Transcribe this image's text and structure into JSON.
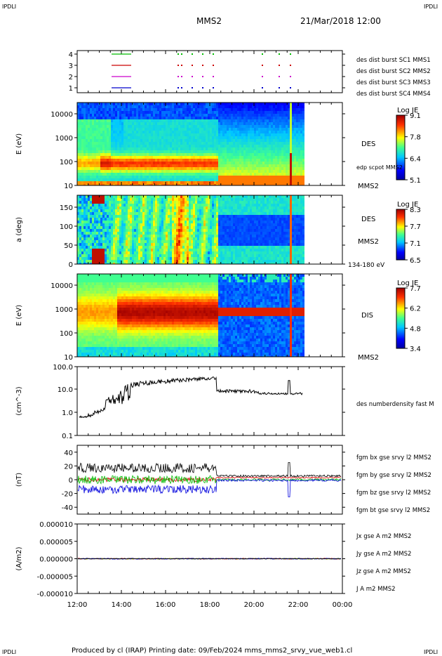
{
  "header": {
    "corner_top_left": "IPDLI",
    "corner_top_right": "IPDLI",
    "corner_bottom_left": "IPDLI",
    "corner_bottom_right": "IPDLI",
    "spacecraft": "MMS2",
    "datetime": "21/Mar/2018 12:00"
  },
  "footer": {
    "text": "Produced by cl (IRAP)   Printing date: 09/Feb/2024   mms_mms2_srvy_vue_web1.cl"
  },
  "chart_data": [
    {
      "id": "burst",
      "type": "scatter",
      "y_ticks": [
        "4",
        "3",
        "2",
        "1"
      ],
      "legend": [
        {
          "label": "des dist burst SC1 MMS1",
          "color": "#0000cc"
        },
        {
          "label": "des dist burst SC2 MMS2",
          "color": "#cc00cc"
        },
        {
          "label": "des dist burst SC3 MMS3",
          "color": "#cc0000"
        },
        {
          "label": "des dist burst SC4 MMS4",
          "color": "#00bb00"
        }
      ]
    },
    {
      "id": "des_energy",
      "type": "heatmap",
      "ylabel": "E (eV)",
      "y_ticks": [
        "10000",
        "1000",
        "100",
        "10"
      ],
      "right_labels": [
        "DES",
        "edp scpot MMS2",
        "MMS2"
      ],
      "colorbar": {
        "title": "Log JE",
        "ticks": [
          "9.1",
          "7.8",
          "6.4",
          "5.1"
        ]
      }
    },
    {
      "id": "des_pitch",
      "type": "heatmap",
      "ylabel": "a (deg)",
      "y_ticks": [
        "150",
        "100",
        "50",
        "0"
      ],
      "right_labels": [
        "DES",
        "MMS2",
        "134-180 eV"
      ],
      "colorbar": {
        "title": "Log JE",
        "ticks": [
          "8.3",
          "7.7",
          "7.1",
          "6.5"
        ]
      }
    },
    {
      "id": "dis_energy",
      "type": "heatmap",
      "ylabel": "E (eV)",
      "y_ticks": [
        "10000",
        "1000",
        "100",
        "10"
      ],
      "right_labels": [
        "DIS",
        "MMS2"
      ],
      "colorbar": {
        "title": "Log JE",
        "ticks": [
          "7.7",
          "6.2",
          "4.8",
          "3.4"
        ]
      }
    },
    {
      "id": "density",
      "type": "line",
      "ylabel": "(cm^-3)",
      "y_ticks": [
        "100.0",
        "10.0",
        "1.0",
        "0.1"
      ],
      "ylim": [
        0.1,
        100
      ],
      "scale": "log",
      "series": [
        {
          "name": "des numberdensity fast M",
          "color": "#000000"
        }
      ]
    },
    {
      "id": "bfield",
      "type": "line",
      "ylabel": "(nT)",
      "y_ticks": [
        "40",
        "20",
        "0",
        "-20",
        "-40"
      ],
      "ylim": [
        -50,
        50
      ],
      "series": [
        {
          "name": "fgm bx gse srvy l2 MMS2",
          "color": "#dd0000"
        },
        {
          "name": "fgm by gse srvy l2 MMS2",
          "color": "#00bb00"
        },
        {
          "name": "fgm bz gse srvy l2 MMS2",
          "color": "#0000dd"
        },
        {
          "name": "fgm bt gse srvy l2 MMS2",
          "color": "#000000"
        }
      ]
    },
    {
      "id": "current",
      "type": "line",
      "ylabel": "(A/m2)",
      "y_ticks": [
        "0.000010",
        "0.000005",
        "0.000000",
        "-0.000005",
        "-0.000010"
      ],
      "ylim": [
        -1e-05,
        1e-05
      ],
      "series": [
        {
          "name": "Jx gse A m2 MMS2",
          "color": "#dd0000"
        },
        {
          "name": "Jy gse A m2 MMS2",
          "color": "#88bb00"
        },
        {
          "name": "Jz gse A m2 MMS2",
          "color": "#0000dd"
        },
        {
          "name": "J A m2 MMS2",
          "color": "#000000"
        }
      ]
    }
  ],
  "x_axis": {
    "ticks": [
      "12:00",
      "14:00",
      "16:00",
      "18:00",
      "20:00",
      "22:00",
      "00:00"
    ]
  }
}
